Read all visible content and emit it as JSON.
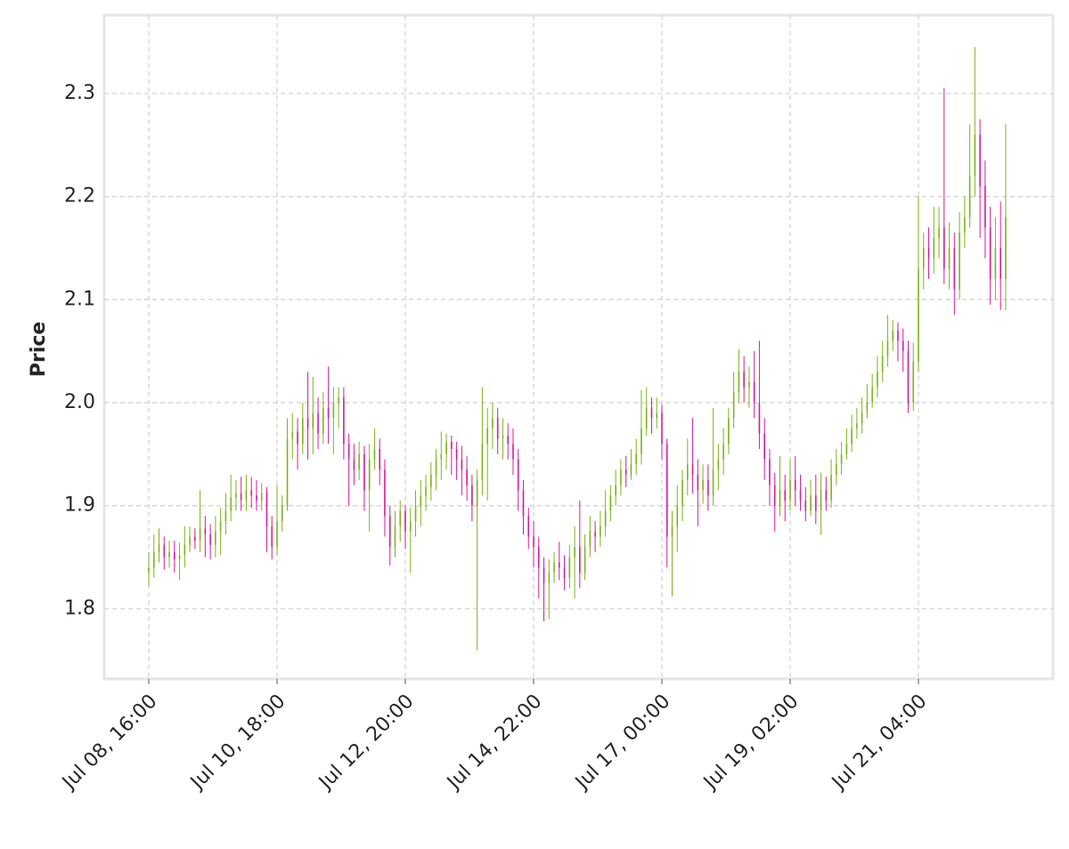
{
  "chart_data": {
    "type": "candlestick",
    "ylabel": "Price",
    "categories": [
      "Jul 08, 16:00",
      null,
      null,
      null,
      null,
      null,
      null,
      null,
      null,
      null,
      null,
      null,
      null,
      null,
      null,
      null,
      null,
      null,
      null,
      null,
      null,
      null,
      null,
      null,
      null,
      "Jul 10, 18:00",
      null,
      null,
      null,
      null,
      null,
      null,
      null,
      null,
      null,
      null,
      null,
      null,
      null,
      null,
      null,
      null,
      null,
      null,
      null,
      null,
      null,
      null,
      null,
      null,
      "Jul 12, 20:00",
      null,
      null,
      null,
      null,
      null,
      null,
      null,
      null,
      null,
      null,
      null,
      null,
      null,
      null,
      null,
      null,
      null,
      null,
      null,
      null,
      null,
      null,
      null,
      null,
      "Jul 14, 22:00",
      null,
      null,
      null,
      null,
      null,
      null,
      null,
      null,
      null,
      null,
      null,
      null,
      null,
      null,
      null,
      null,
      null,
      null,
      null,
      null,
      null,
      null,
      null,
      null,
      "Jul 17, 00:00",
      null,
      null,
      null,
      null,
      null,
      null,
      null,
      null,
      null,
      null,
      null,
      null,
      null,
      null,
      null,
      null,
      null,
      null,
      null,
      null,
      null,
      null,
      null,
      null,
      "Jul 19, 02:00",
      null,
      null,
      null,
      null,
      null,
      null,
      null,
      null,
      null,
      null,
      null,
      null,
      null,
      null,
      null,
      null,
      null,
      null,
      null,
      null,
      null,
      null,
      null,
      null,
      "Jul 21, 04:00",
      null,
      null,
      null,
      null,
      null,
      null,
      null,
      null,
      null,
      null,
      null,
      null,
      null,
      null,
      null,
      null,
      null
    ],
    "open": [
      1.835,
      1.84,
      1.855,
      1.862,
      1.85,
      1.855,
      1.848,
      1.852,
      1.862,
      1.87,
      1.866,
      1.878,
      1.872,
      1.862,
      1.875,
      1.885,
      1.895,
      1.908,
      1.912,
      1.906,
      1.915,
      1.91,
      1.905,
      1.912,
      1.88,
      1.86,
      1.885,
      1.9,
      1.965,
      1.972,
      1.96,
      1.985,
      1.975,
      1.99,
      1.97,
      1.995,
      1.985,
      2.0,
      2.005,
      1.96,
      1.945,
      1.935,
      1.95,
      1.915,
      1.945,
      1.955,
      1.935,
      1.89,
      1.86,
      1.88,
      1.895,
      1.875,
      1.885,
      1.9,
      1.91,
      1.918,
      1.93,
      1.945,
      1.95,
      1.962,
      1.955,
      1.945,
      1.935,
      1.92,
      1.9,
      1.925,
      1.96,
      1.975,
      1.985,
      1.965,
      1.968,
      1.96,
      1.945,
      1.915,
      1.89,
      1.87,
      1.86,
      1.84,
      1.825,
      1.835,
      1.845,
      1.84,
      1.83,
      1.85,
      1.86,
      1.835,
      1.86,
      1.875,
      1.87,
      1.88,
      1.895,
      1.91,
      1.92,
      1.935,
      1.93,
      1.94,
      1.95,
      1.975,
      1.995,
      1.985,
      1.99,
      1.96,
      1.87,
      1.88,
      1.9,
      1.925,
      1.94,
      1.93,
      1.915,
      1.925,
      1.91,
      1.935,
      1.945,
      1.96,
      1.985,
      2.01,
      2.03,
      2.015,
      2.02,
      2.0,
      1.97,
      1.945,
      1.92,
      1.9,
      1.915,
      1.905,
      1.925,
      1.915,
      1.905,
      1.895,
      1.91,
      1.895,
      1.915,
      1.905,
      1.93,
      1.94,
      1.95,
      1.96,
      1.975,
      1.98,
      1.99,
      2.0,
      2.015,
      2.03,
      2.045,
      2.06,
      2.07,
      2.06,
      2.05,
      2.0,
      2.04,
      2.13,
      2.15,
      2.14,
      2.16,
      2.17,
      2.13,
      2.15,
      2.11,
      2.165,
      2.18,
      2.22,
      2.26,
      2.21,
      2.17,
      2.12,
      2.15,
      2.12
    ],
    "high": [
      1.855,
      1.872,
      1.878,
      1.87,
      1.866,
      1.866,
      1.864,
      1.88,
      1.88,
      1.878,
      1.915,
      1.89,
      1.882,
      1.89,
      1.898,
      1.912,
      1.93,
      1.925,
      1.928,
      1.93,
      1.928,
      1.925,
      1.922,
      1.918,
      1.89,
      1.92,
      1.91,
      1.985,
      1.99,
      1.985,
      2.0,
      2.03,
      2.025,
      2.005,
      2.01,
      2.035,
      2.015,
      2.015,
      2.015,
      1.97,
      1.96,
      1.962,
      1.958,
      1.96,
      1.975,
      1.965,
      1.945,
      1.9,
      1.895,
      1.905,
      1.9,
      1.898,
      1.915,
      1.925,
      1.93,
      1.942,
      1.955,
      1.972,
      1.97,
      1.968,
      1.962,
      1.958,
      1.948,
      1.93,
      1.935,
      2.015,
      1.995,
      2.0,
      1.995,
      1.985,
      1.98,
      1.975,
      1.955,
      1.925,
      1.898,
      1.885,
      1.87,
      1.85,
      1.848,
      1.855,
      1.865,
      1.852,
      1.862,
      1.88,
      1.905,
      1.872,
      1.89,
      1.885,
      1.895,
      1.915,
      1.92,
      1.935,
      1.945,
      1.948,
      1.955,
      1.965,
      2.012,
      2.015,
      2.005,
      2.005,
      1.998,
      1.965,
      1.895,
      1.92,
      1.935,
      1.965,
      1.985,
      1.945,
      1.94,
      1.94,
      1.995,
      1.96,
      1.975,
      1.995,
      2.03,
      2.052,
      2.045,
      2.035,
      2.05,
      2.06,
      1.985,
      1.955,
      1.932,
      1.948,
      1.93,
      1.945,
      1.948,
      1.93,
      1.918,
      1.925,
      1.93,
      1.932,
      1.928,
      1.945,
      1.955,
      1.962,
      1.975,
      1.988,
      1.995,
      2.005,
      2.018,
      2.028,
      2.045,
      2.06,
      2.085,
      2.08,
      2.078,
      2.072,
      2.06,
      2.058,
      2.2,
      2.165,
      2.17,
      2.19,
      2.19,
      2.305,
      2.175,
      2.165,
      2.185,
      2.2,
      2.27,
      2.345,
      2.275,
      2.235,
      2.19,
      2.18,
      2.195,
      2.27
    ],
    "low": [
      1.822,
      1.83,
      1.845,
      1.838,
      1.84,
      1.835,
      1.828,
      1.84,
      1.855,
      1.858,
      1.855,
      1.85,
      1.848,
      1.85,
      1.852,
      1.872,
      1.885,
      1.895,
      1.895,
      1.895,
      1.898,
      1.895,
      1.895,
      1.855,
      1.848,
      1.852,
      1.875,
      1.895,
      1.945,
      1.935,
      1.95,
      1.945,
      1.95,
      1.955,
      1.96,
      1.96,
      1.95,
      1.975,
      1.945,
      1.9,
      1.92,
      1.925,
      1.895,
      1.875,
      1.935,
      1.92,
      1.87,
      1.842,
      1.85,
      1.865,
      1.858,
      1.835,
      1.87,
      1.88,
      1.895,
      1.905,
      1.915,
      1.925,
      1.935,
      1.93,
      1.925,
      1.91,
      1.905,
      1.885,
      1.76,
      1.91,
      1.905,
      1.955,
      1.95,
      1.945,
      1.945,
      1.93,
      1.895,
      1.872,
      1.858,
      1.84,
      1.81,
      1.788,
      1.79,
      1.825,
      1.828,
      1.818,
      1.82,
      1.81,
      1.82,
      1.828,
      1.85,
      1.855,
      1.86,
      1.87,
      1.885,
      1.9,
      1.91,
      1.918,
      1.925,
      1.93,
      1.94,
      1.968,
      1.97,
      1.975,
      1.945,
      1.84,
      1.812,
      1.855,
      1.885,
      1.91,
      1.912,
      1.88,
      1.902,
      1.895,
      1.9,
      1.915,
      1.93,
      1.95,
      1.975,
      2.0,
      2.0,
      1.995,
      1.985,
      1.955,
      1.925,
      1.9,
      1.875,
      1.89,
      1.885,
      1.895,
      1.9,
      1.895,
      1.885,
      1.89,
      1.882,
      1.872,
      1.895,
      1.898,
      1.92,
      1.93,
      1.945,
      1.952,
      1.965,
      1.97,
      1.985,
      1.995,
      2.005,
      2.02,
      2.035,
      2.05,
      2.04,
      2.03,
      1.99,
      1.992,
      2.03,
      2.11,
      2.12,
      2.125,
      2.14,
      2.115,
      2.11,
      2.085,
      2.1,
      2.15,
      2.17,
      2.2,
      2.16,
      2.14,
      2.095,
      2.1,
      2.09,
      2.09
    ],
    "close": [
      1.84,
      1.855,
      1.862,
      1.85,
      1.855,
      1.848,
      1.852,
      1.862,
      1.87,
      1.866,
      1.878,
      1.872,
      1.862,
      1.875,
      1.885,
      1.895,
      1.908,
      1.912,
      1.906,
      1.915,
      1.91,
      1.905,
      1.912,
      1.88,
      1.86,
      1.885,
      1.9,
      1.965,
      1.972,
      1.96,
      1.985,
      1.975,
      1.99,
      1.97,
      1.995,
      1.985,
      2.0,
      2.005,
      1.96,
      1.945,
      1.935,
      1.95,
      1.915,
      1.945,
      1.955,
      1.935,
      1.89,
      1.86,
      1.88,
      1.895,
      1.875,
      1.885,
      1.9,
      1.91,
      1.918,
      1.93,
      1.945,
      1.95,
      1.962,
      1.955,
      1.945,
      1.935,
      1.92,
      1.9,
      1.925,
      1.96,
      1.975,
      1.985,
      1.965,
      1.968,
      1.96,
      1.945,
      1.915,
      1.89,
      1.87,
      1.86,
      1.84,
      1.825,
      1.835,
      1.845,
      1.84,
      1.83,
      1.85,
      1.86,
      1.835,
      1.86,
      1.875,
      1.87,
      1.88,
      1.895,
      1.91,
      1.92,
      1.935,
      1.93,
      1.94,
      1.95,
      1.975,
      1.995,
      1.985,
      1.99,
      1.96,
      1.87,
      1.88,
      1.9,
      1.925,
      1.94,
      1.93,
      1.915,
      1.925,
      1.91,
      1.935,
      1.945,
      1.96,
      1.985,
      2.01,
      2.03,
      2.015,
      2.02,
      2.0,
      1.97,
      1.945,
      1.92,
      1.9,
      1.915,
      1.905,
      1.925,
      1.915,
      1.905,
      1.895,
      1.91,
      1.895,
      1.915,
      1.905,
      1.93,
      1.94,
      1.95,
      1.96,
      1.975,
      1.98,
      1.99,
      2.0,
      2.015,
      2.03,
      2.045,
      2.06,
      2.07,
      2.06,
      2.05,
      2.0,
      2.04,
      2.13,
      2.15,
      2.14,
      2.16,
      2.17,
      2.13,
      2.15,
      2.11,
      2.165,
      2.18,
      2.22,
      2.26,
      2.21,
      2.17,
      2.12,
      2.15,
      2.12,
      2.18
    ],
    "up_color": "#7cb518",
    "down_color": "#e0189a",
    "ylim": [
      1.732,
      2.376
    ],
    "yticks": [
      1.8,
      1.9,
      {
        "value": 2.0,
        "label": "2.0"
      },
      2.1,
      2.2,
      2.3
    ],
    "grid": true
  }
}
